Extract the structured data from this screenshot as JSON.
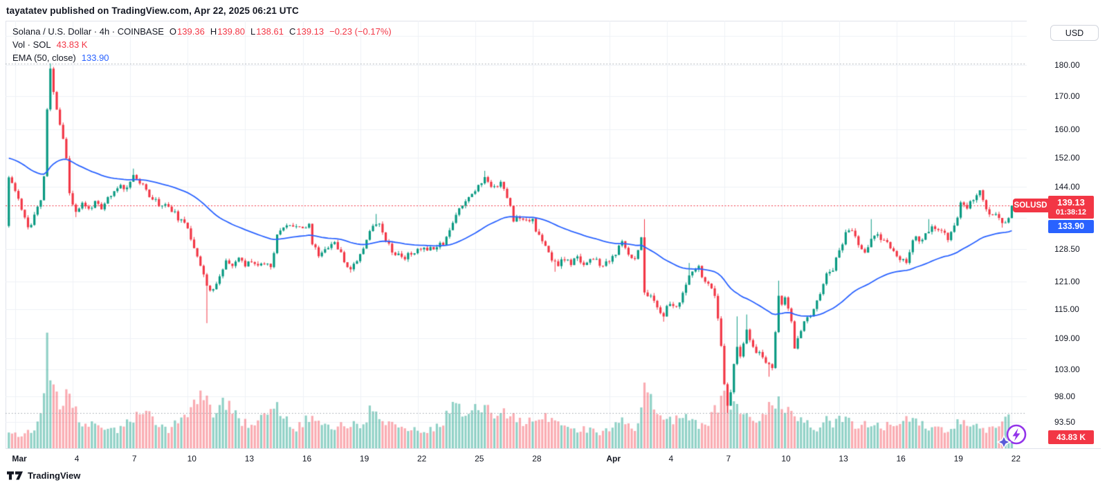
{
  "page": {
    "published_line": "tayatatev published on TradingView.com, Apr 22, 2025 06:21 UTC",
    "attribution": "TradingView"
  },
  "header": {
    "symbol_line": "Solana / U.S. Dollar · 4h · COINBASE",
    "ohlc": {
      "o_label": "O",
      "o": "139.36",
      "h_label": "H",
      "h": "139.80",
      "l_label": "L",
      "l": "138.61",
      "c_label": "C",
      "c": "139.13",
      "change": "−0.23 (−0.17%)"
    },
    "vol_label": "Vol · SOL",
    "vol_value": "43.83 K",
    "ema_label": "EMA (50, close)",
    "ema_value": "133.90"
  },
  "price_axis": {
    "currency": "USD",
    "symbol_badge": "SOLUSD",
    "last_price": "139.13",
    "countdown": "01:38:12",
    "ema_value": "133.90",
    "volume_value": "43.83 K"
  },
  "chart_data": {
    "type": "candlestick",
    "title": "Solana / U.S. Dollar · 4h · COINBASE",
    "symbol": "SOLUSD",
    "interval": "4h",
    "exchange": "COINBASE",
    "price_scale": "log",
    "grid": true,
    "ohlc_last": {
      "open": 139.36,
      "high": 139.8,
      "low": 138.61,
      "close": 139.13,
      "change": -0.23,
      "change_pct": -0.17
    },
    "volume_last_display": "43.83 K",
    "ema": {
      "period": 50,
      "source": "close",
      "last": 133.9,
      "seed": 152
    },
    "last_price": 139.13,
    "countdown": "01:38:12",
    "range_high": 180.64,
    "range_low": 95.06,
    "n_candles": 315,
    "first_open": 134,
    "y_ticks": [
      {
        "v": 180,
        "label": "180.00"
      },
      {
        "v": 170,
        "label": "170.00"
      },
      {
        "v": 160,
        "label": "160.00"
      },
      {
        "v": 152,
        "label": "152.00"
      },
      {
        "v": 144,
        "label": "144.00"
      },
      {
        "v": 128.5,
        "label": "128.50"
      },
      {
        "v": 121,
        "label": "121.00"
      },
      {
        "v": 115,
        "label": "115.00"
      },
      {
        "v": 109,
        "label": "109.00"
      },
      {
        "v": 103,
        "label": "103.00"
      },
      {
        "v": 98,
        "label": "98.00"
      },
      {
        "v": 93.5,
        "label": "93.50"
      }
    ],
    "grid_only_prices": [
      190,
      136
    ],
    "x_ticks": [
      {
        "d": 0,
        "label": "Mar",
        "bold": true
      },
      {
        "d": 3,
        "label": "4",
        "bold": false
      },
      {
        "d": 6,
        "label": "7",
        "bold": false
      },
      {
        "d": 9,
        "label": "10",
        "bold": false
      },
      {
        "d": 12,
        "label": "13",
        "bold": false
      },
      {
        "d": 15,
        "label": "16",
        "bold": false
      },
      {
        "d": 18,
        "label": "19",
        "bold": false
      },
      {
        "d": 21,
        "label": "22",
        "bold": false
      },
      {
        "d": 24,
        "label": "25",
        "bold": false
      },
      {
        "d": 27,
        "label": "28",
        "bold": false
      },
      {
        "d": 31,
        "label": "Apr",
        "bold": true
      },
      {
        "d": 34,
        "label": "4",
        "bold": false
      },
      {
        "d": 37,
        "label": "7",
        "bold": false
      },
      {
        "d": 40,
        "label": "10",
        "bold": false
      },
      {
        "d": 43,
        "label": "13",
        "bold": false
      },
      {
        "d": 46,
        "label": "16",
        "bold": false
      },
      {
        "d": 49,
        "label": "19",
        "bold": false
      },
      {
        "d": 52,
        "label": "22",
        "bold": false
      }
    ],
    "colors": {
      "up": "#089981",
      "down": "#f23645",
      "vol_up": "rgba(8,153,129,0.45)",
      "vol_down": "rgba(242,54,69,0.42)",
      "ema": "#2962ff",
      "last_price_line": "#f23645",
      "range_line": "#9aa0aa",
      "grid": "#eef0f6",
      "accent_badge": "#f23645",
      "accent_ema_badge": "#2962ff"
    },
    "close_anchors": [
      [
        0,
        146.5
      ],
      [
        1,
        144.5
      ],
      [
        3,
        141
      ],
      [
        5,
        136
      ],
      [
        6,
        133.8
      ],
      [
        7,
        134.5
      ],
      [
        8,
        136.5
      ],
      [
        9,
        138.5
      ],
      [
        10,
        140
      ],
      [
        11,
        147
      ],
      [
        12,
        166
      ],
      [
        13,
        178.5
      ],
      [
        14,
        171.5
      ],
      [
        15,
        166
      ],
      [
        16,
        161.5
      ],
      [
        17,
        157.5
      ],
      [
        18,
        151.5
      ],
      [
        19,
        142.5
      ],
      [
        20,
        139.5
      ],
      [
        21,
        137.8
      ],
      [
        23,
        139.5
      ],
      [
        25,
        138.2
      ],
      [
        27,
        140
      ],
      [
        29,
        137.8
      ],
      [
        31,
        141
      ],
      [
        33,
        142.5
      ],
      [
        35,
        144.5
      ],
      [
        37,
        143.5
      ],
      [
        38,
        146
      ],
      [
        39,
        147.3
      ],
      [
        41,
        145
      ],
      [
        44,
        142
      ],
      [
        47,
        139.5
      ],
      [
        50,
        139
      ],
      [
        52,
        137
      ],
      [
        54,
        135
      ],
      [
        56,
        133.5
      ],
      [
        58,
        129
      ],
      [
        60,
        125
      ],
      [
        62,
        120
      ],
      [
        63,
        118.5
      ],
      [
        65,
        121
      ],
      [
        67,
        123.5
      ],
      [
        68,
        126
      ],
      [
        70,
        124
      ],
      [
        72,
        126.5
      ],
      [
        74,
        124.5
      ],
      [
        76,
        126
      ],
      [
        78,
        124.5
      ],
      [
        80,
        125.5
      ],
      [
        82,
        124.5
      ],
      [
        83,
        128
      ],
      [
        84,
        132.5
      ],
      [
        86,
        133.5
      ],
      [
        88,
        134
      ],
      [
        90,
        134.5
      ],
      [
        92,
        133.5
      ],
      [
        94,
        134
      ],
      [
        95,
        130
      ],
      [
        97,
        127
      ],
      [
        99,
        128.5
      ],
      [
        101,
        130
      ],
      [
        103,
        129
      ],
      [
        105,
        125.5
      ],
      [
        107,
        124
      ],
      [
        109,
        126
      ],
      [
        111,
        129
      ],
      [
        113,
        133
      ],
      [
        115,
        134.5
      ],
      [
        116,
        135
      ],
      [
        118,
        131
      ],
      [
        120,
        128
      ],
      [
        122,
        127
      ],
      [
        124,
        126.5
      ],
      [
        126,
        127.5
      ],
      [
        128,
        128
      ],
      [
        130,
        129
      ],
      [
        132,
        128.5
      ],
      [
        134,
        129.5
      ],
      [
        136,
        130
      ],
      [
        138,
        133
      ],
      [
        140,
        136.5
      ],
      [
        141,
        138.5
      ],
      [
        143,
        140.5
      ],
      [
        145,
        142.5
      ],
      [
        147,
        144
      ],
      [
        149,
        146.5
      ],
      [
        150,
        145
      ],
      [
        152,
        144
      ],
      [
        154,
        145.5
      ],
      [
        155,
        143
      ],
      [
        157,
        139
      ],
      [
        158,
        135.5
      ],
      [
        160,
        136.5
      ],
      [
        162,
        135.5
      ],
      [
        164,
        136
      ],
      [
        165,
        133
      ],
      [
        167,
        130
      ],
      [
        169,
        127.5
      ],
      [
        170,
        126
      ],
      [
        172,
        125
      ],
      [
        174,
        126
      ],
      [
        176,
        125
      ],
      [
        178,
        126.5
      ],
      [
        180,
        125
      ],
      [
        182,
        126
      ],
      [
        184,
        125.5
      ],
      [
        186,
        124.5
      ],
      [
        188,
        125.5
      ],
      [
        190,
        127.5
      ],
      [
        192,
        129.8
      ],
      [
        194,
        127.5
      ],
      [
        196,
        126
      ],
      [
        197,
        128
      ],
      [
        198,
        131.3
      ],
      [
        199,
        119
      ],
      [
        201,
        117.5
      ],
      [
        203,
        115.5
      ],
      [
        205,
        114
      ],
      [
        207,
        116.5
      ],
      [
        209,
        115
      ],
      [
        211,
        118.5
      ],
      [
        213,
        122
      ],
      [
        214,
        123
      ],
      [
        216,
        124
      ],
      [
        217,
        122.5
      ],
      [
        219,
        120
      ],
      [
        221,
        118
      ],
      [
        222,
        113
      ],
      [
        223,
        107
      ],
      [
        224,
        100
      ],
      [
        225,
        96.5
      ],
      [
        226,
        99
      ],
      [
        227,
        104
      ],
      [
        228,
        107
      ],
      [
        229,
        105
      ],
      [
        230,
        108
      ],
      [
        231,
        110.5
      ],
      [
        233,
        107
      ],
      [
        235,
        106
      ],
      [
        237,
        104.5
      ],
      [
        239,
        103.5
      ],
      [
        241,
        117.5
      ],
      [
        242,
        116
      ],
      [
        243,
        118
      ],
      [
        244,
        115
      ],
      [
        245,
        112
      ],
      [
        246,
        107
      ],
      [
        247,
        109
      ],
      [
        249,
        112
      ],
      [
        251,
        114
      ],
      [
        253,
        117
      ],
      [
        255,
        120
      ],
      [
        256,
        123
      ],
      [
        258,
        124
      ],
      [
        259,
        126
      ],
      [
        261,
        130
      ],
      [
        262,
        132
      ],
      [
        264,
        133
      ],
      [
        266,
        129
      ],
      [
        268,
        128
      ],
      [
        270,
        131
      ],
      [
        272,
        132
      ],
      [
        274,
        130
      ],
      [
        276,
        129
      ],
      [
        278,
        127
      ],
      [
        279,
        126
      ],
      [
        281,
        125
      ],
      [
        282,
        128
      ],
      [
        284,
        132
      ],
      [
        285,
        130
      ],
      [
        286,
        131
      ],
      [
        288,
        133
      ],
      [
        290,
        133.5
      ],
      [
        292,
        132.5
      ],
      [
        294,
        131
      ],
      [
        295,
        133
      ],
      [
        296,
        134
      ],
      [
        298,
        139.5
      ],
      [
        300,
        139
      ],
      [
        302,
        141
      ],
      [
        304,
        142.5
      ],
      [
        305,
        140
      ],
      [
        307,
        137.5
      ],
      [
        309,
        136.5
      ],
      [
        311,
        135
      ],
      [
        312,
        134.7
      ],
      [
        313,
        136.5
      ],
      [
        314,
        139.13
      ]
    ],
    "wick_overrides": [
      [
        13,
        "high",
        180.64
      ],
      [
        21,
        "low",
        136.2
      ],
      [
        39,
        "high",
        148.9
      ],
      [
        62,
        "low",
        112.1
      ],
      [
        107,
        "low",
        123.0
      ],
      [
        115,
        "high",
        137.0
      ],
      [
        149,
        "high",
        148.3
      ],
      [
        171,
        "low",
        123.2
      ],
      [
        199,
        "high",
        135.7
      ],
      [
        205,
        "low",
        112.4
      ],
      [
        213,
        "high",
        125.2
      ],
      [
        225,
        "low",
        95.06
      ],
      [
        228,
        "high",
        113.5
      ],
      [
        231,
        "high",
        113.9
      ],
      [
        238,
        "low",
        101.6
      ],
      [
        241,
        "high",
        121.2
      ],
      [
        270,
        "high",
        135.7
      ],
      [
        288,
        "high",
        135.7
      ],
      [
        304,
        "high",
        142.9
      ],
      [
        311,
        "low",
        133.6
      ]
    ],
    "volume_anchors": [
      [
        0,
        22
      ],
      [
        4,
        18
      ],
      [
        8,
        30
      ],
      [
        10,
        45
      ],
      [
        11,
        70
      ],
      [
        12,
        167
      ],
      [
        13,
        120
      ],
      [
        14,
        95
      ],
      [
        16,
        55
      ],
      [
        18,
        90
      ],
      [
        20,
        60
      ],
      [
        24,
        30
      ],
      [
        28,
        35
      ],
      [
        32,
        25
      ],
      [
        36,
        30
      ],
      [
        39,
        45
      ],
      [
        42,
        55
      ],
      [
        46,
        40
      ],
      [
        50,
        25
      ],
      [
        54,
        45
      ],
      [
        58,
        62
      ],
      [
        60,
        72
      ],
      [
        62,
        76
      ],
      [
        64,
        55
      ],
      [
        68,
        65
      ],
      [
        72,
        40
      ],
      [
        77,
        30
      ],
      [
        83,
        65
      ],
      [
        86,
        42
      ],
      [
        90,
        30
      ],
      [
        94,
        45
      ],
      [
        98,
        35
      ],
      [
        102,
        30
      ],
      [
        106,
        35
      ],
      [
        110,
        32
      ],
      [
        113,
        52
      ],
      [
        116,
        46
      ],
      [
        120,
        36
      ],
      [
        124,
        30
      ],
      [
        128,
        26
      ],
      [
        132,
        28
      ],
      [
        136,
        36
      ],
      [
        139,
        70
      ],
      [
        142,
        46
      ],
      [
        146,
        56
      ],
      [
        149,
        60
      ],
      [
        152,
        40
      ],
      [
        155,
        52
      ],
      [
        158,
        46
      ],
      [
        162,
        36
      ],
      [
        166,
        40
      ],
      [
        170,
        46
      ],
      [
        174,
        30
      ],
      [
        178,
        26
      ],
      [
        182,
        28
      ],
      [
        186,
        22
      ],
      [
        190,
        36
      ],
      [
        193,
        40
      ],
      [
        196,
        30
      ],
      [
        198,
        50
      ],
      [
        199,
        111
      ],
      [
        201,
        70
      ],
      [
        203,
        56
      ],
      [
        206,
        46
      ],
      [
        209,
        40
      ],
      [
        212,
        50
      ],
      [
        215,
        36
      ],
      [
        218,
        32
      ],
      [
        221,
        56
      ],
      [
        223,
        70
      ],
      [
        224,
        76
      ],
      [
        226,
        66
      ],
      [
        228,
        56
      ],
      [
        230,
        46
      ],
      [
        232,
        50
      ],
      [
        234,
        40
      ],
      [
        236,
        46
      ],
      [
        238,
        66
      ],
      [
        240,
        50
      ],
      [
        241,
        80
      ],
      [
        243,
        56
      ],
      [
        245,
        46
      ],
      [
        247,
        42
      ],
      [
        250,
        36
      ],
      [
        253,
        30
      ],
      [
        256,
        40
      ],
      [
        259,
        36
      ],
      [
        262,
        46
      ],
      [
        265,
        30
      ],
      [
        268,
        36
      ],
      [
        271,
        40
      ],
      [
        274,
        30
      ],
      [
        277,
        36
      ],
      [
        280,
        40
      ],
      [
        283,
        46
      ],
      [
        286,
        36
      ],
      [
        289,
        30
      ],
      [
        292,
        26
      ],
      [
        295,
        28
      ],
      [
        298,
        40
      ],
      [
        301,
        36
      ],
      [
        304,
        30
      ],
      [
        307,
        26
      ],
      [
        310,
        30
      ],
      [
        313,
        44
      ],
      [
        314,
        10
      ]
    ]
  }
}
